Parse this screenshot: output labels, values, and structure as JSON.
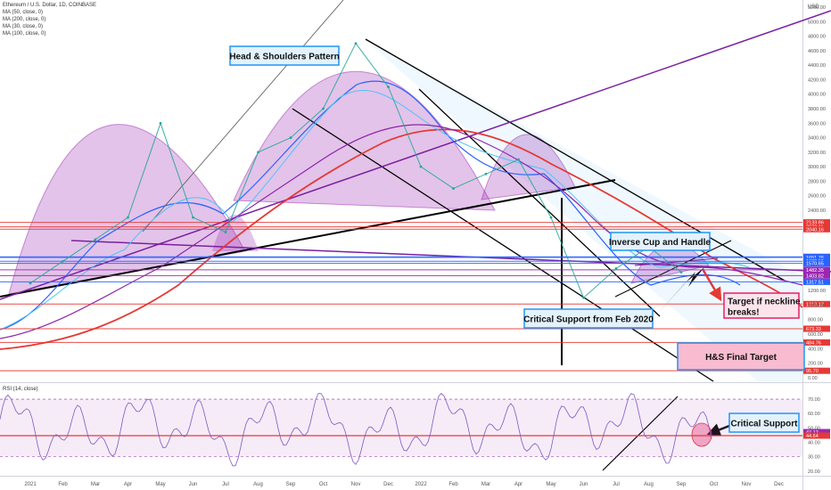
{
  "chart_data": {
    "type": "line",
    "title": "Ethereum / U.S. Dollar, 1D, COINBASE",
    "indicators": [
      "MA (50, close, 0)",
      "MA (200, close, 0)",
      "MA (30, close, 0)",
      "MA (100, close, 0)"
    ],
    "price_axis": {
      "unit": "USD",
      "ticks": [
        "5200.00",
        "5000.00",
        "4800.00",
        "4600.00",
        "4400.00",
        "4200.00",
        "4000.00",
        "3800.00",
        "3600.00",
        "3400.00",
        "3200.00",
        "3000.00",
        "2800.00",
        "2600.00",
        "2400.00",
        "1200.00",
        "1000.00",
        "800.00",
        "600.00",
        "400.00",
        "200.00",
        "0.00"
      ],
      "ylim": [
        0,
        5300
      ]
    },
    "time_axis": {
      "ticks": [
        "2021",
        "Feb",
        "Mar",
        "Apr",
        "May",
        "Jun",
        "Jul",
        "Aug",
        "Sep",
        "Oct",
        "Nov",
        "Dec",
        "2022",
        "Feb",
        "Mar",
        "Apr",
        "May",
        "Jun",
        "Jul",
        "Aug",
        "Sep",
        "Oct",
        "Nov",
        "Dec"
      ]
    },
    "price_levels": [
      {
        "label": "2133.86",
        "value": 2133.86,
        "color": "#e53935"
      },
      {
        "label": "2072.11",
        "value": 2072.11,
        "color": "#e53935"
      },
      {
        "label": "2040.16",
        "value": 2040.16,
        "color": "#e53935"
      },
      {
        "label": "1661.54",
        "value": 1661.54,
        "color": "#2962ff"
      },
      {
        "label": "1651.76",
        "value": 1651.76,
        "color": "#2962ff"
      },
      {
        "label": "1600.51",
        "value": 1600.51,
        "color": "#2962ff"
      },
      {
        "label": "1570.65",
        "value": 1570.65,
        "color": "#2962ff"
      },
      {
        "label": "1482.35",
        "value": 1482.35,
        "color": "#9c27b0"
      },
      {
        "label": "1403.82",
        "value": 1403.82,
        "color": "#9c27b0"
      },
      {
        "label": "1317.51",
        "value": 1317.51,
        "color": "#2962ff"
      },
      {
        "label": "1013.12",
        "value": 1013.12,
        "color": "#e53935"
      },
      {
        "label": "673.33",
        "value": 673.33,
        "color": "#e53935"
      },
      {
        "label": "484.76",
        "value": 484.76,
        "color": "#e53935"
      },
      {
        "label": "95.70",
        "value": 95.7,
        "color": "#e53935"
      }
    ],
    "approx_close_series": {
      "dates": [
        "2021-01",
        "2021-02",
        "2021-03",
        "2021-04",
        "2021-05",
        "2021-06",
        "2021-07",
        "2021-08",
        "2021-09",
        "2021-10",
        "2021-11",
        "2021-12",
        "2022-01",
        "2022-02",
        "2022-03",
        "2022-04",
        "2022-05",
        "2022-06",
        "2022-07",
        "2022-08",
        "2022-09"
      ],
      "values": [
        1300,
        1600,
        1900,
        2300,
        3600,
        2300,
        2000,
        3200,
        3400,
        3800,
        4700,
        4100,
        3000,
        2700,
        2900,
        3100,
        2300,
        1100,
        1500,
        1800,
        1450
      ]
    },
    "annotations": {
      "head_shoulders": "Head & Shoulders Pattern",
      "cup_handle": "Inverse Cup and Handle",
      "target_neckline": "Target if neckline breaks!",
      "critical_support_2020": "Critical Support from Feb 2020",
      "hs_final_target": "H&S Final Target",
      "rsi_critical_support": "Critical Support"
    },
    "rsi": {
      "label": "RSI (14, close)",
      "ticks": [
        "70.00",
        "60.00",
        "50.00",
        "40.00",
        "30.00",
        "20.00"
      ],
      "ylim": [
        18,
        75
      ],
      "band": [
        30,
        70
      ],
      "current_labels": [
        "47.12",
        "44.64"
      ]
    }
  },
  "colors": {
    "pattern_fill": "#9c27b0",
    "support": "#e53935",
    "annotation_border": "#2196f3",
    "target_fill": "#f8bbd0"
  }
}
